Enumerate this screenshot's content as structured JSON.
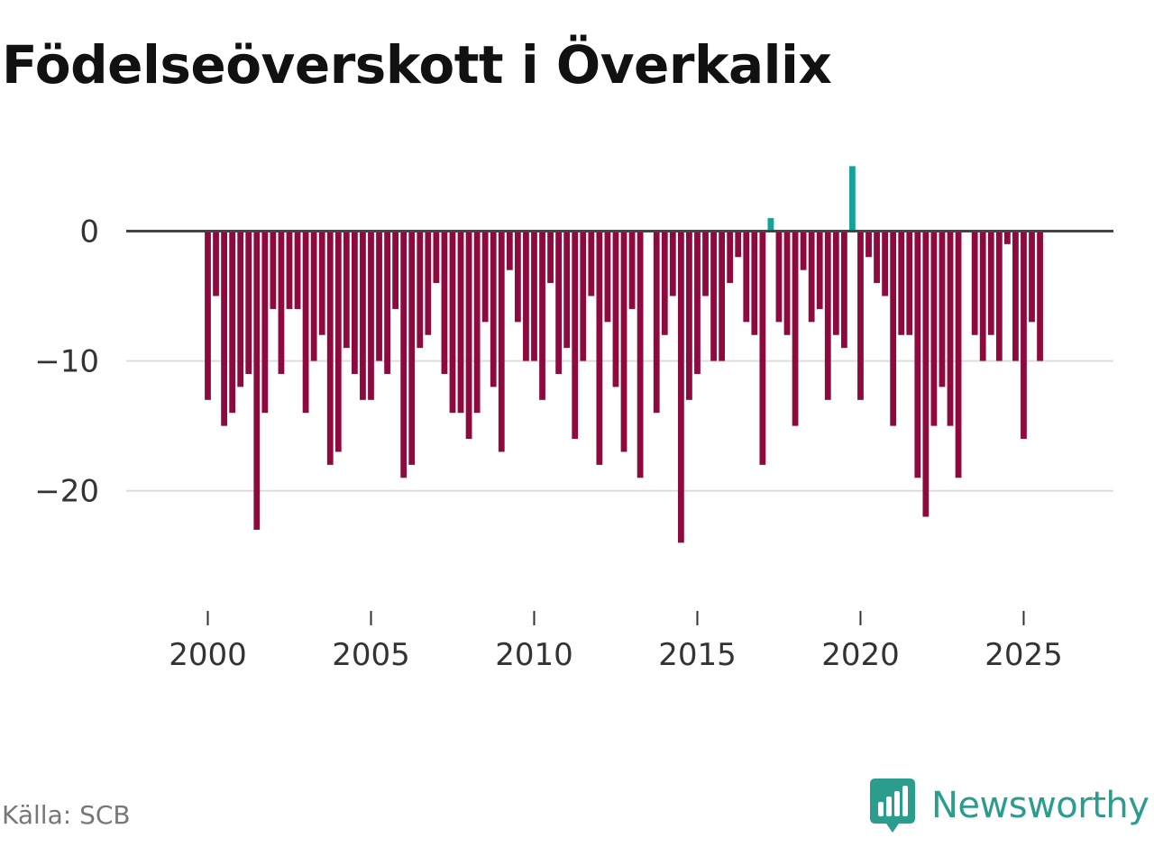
{
  "title": "Födelseöverskott i Överkalix",
  "source": "Källa: SCB",
  "brand": "Newsworthy",
  "colors": {
    "negative": "#8e0a3e",
    "positive": "#13a399",
    "zero_line": "#444444",
    "grid": "#dddddd",
    "brand": "#2a9d8f"
  },
  "chart_data": {
    "type": "bar",
    "title": "Födelseöverskott i Överkalix",
    "xlabel": "",
    "ylabel": "",
    "x_start": 2000,
    "x_step": 0.25,
    "xlim": [
      1997.5,
      2027.75
    ],
    "ylim": [
      -28,
      6
    ],
    "yticks": [
      0,
      -10,
      -20
    ],
    "ytick_labels": [
      "0",
      "−10",
      "−20"
    ],
    "xticks": [
      2000,
      2005,
      2010,
      2015,
      2020,
      2025
    ],
    "xtick_labels": [
      "2000",
      "2005",
      "2010",
      "2015",
      "2020",
      "2025"
    ],
    "values": [
      -13,
      -5,
      -15,
      -14,
      -12,
      -11,
      -23,
      -14,
      -6,
      -11,
      -6,
      -6,
      -14,
      -10,
      -8,
      -18,
      -17,
      -9,
      -11,
      -13,
      -13,
      -10,
      -11,
      -6,
      -19,
      -18,
      -9,
      -8,
      -4,
      -11,
      -14,
      -14,
      -16,
      -14,
      -7,
      -12,
      -17,
      -3,
      -7,
      -10,
      -10,
      -13,
      -4,
      -11,
      -9,
      -16,
      -10,
      -5,
      -18,
      -7,
      -12,
      -17,
      -6,
      -19,
      0,
      -14,
      -8,
      -5,
      -24,
      -13,
      -11,
      -5,
      -10,
      -10,
      -4,
      -2,
      -7,
      -8,
      -18,
      1,
      -7,
      -8,
      -15,
      -3,
      -7,
      -6,
      -13,
      -8,
      -9,
      5,
      -13,
      -2,
      -4,
      -5,
      -15,
      -8,
      -8,
      -19,
      -22,
      -15,
      -12,
      -15,
      -19,
      0,
      -8,
      -10,
      -8,
      -10,
      -1,
      -10,
      -16,
      -7,
      -10
    ]
  }
}
